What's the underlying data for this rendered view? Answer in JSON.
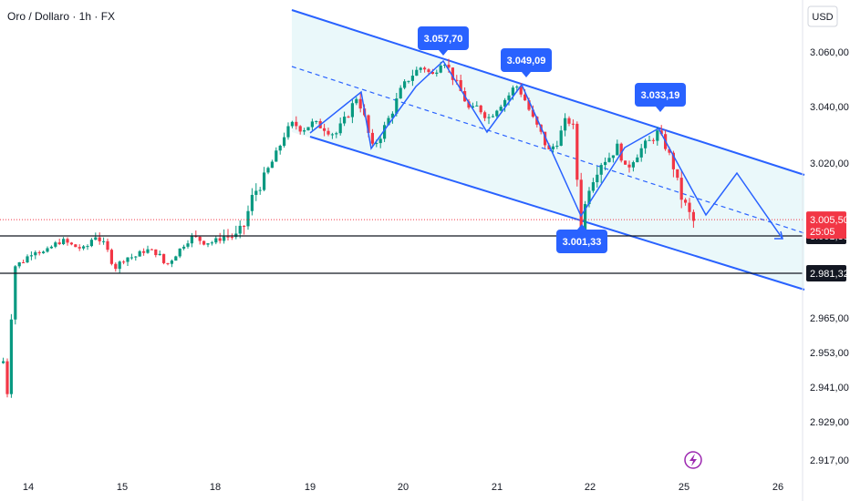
{
  "header": {
    "title": "Oro / Dollaro · 1h · FX"
  },
  "price_axis": {
    "currency": "USD"
  },
  "colors": {
    "up": "#089981",
    "down": "#f23645",
    "pattern": "#2962ff",
    "channel_fill": "#e8f7fa",
    "tag_dark": "#131722",
    "tag_red": "#f23645",
    "lightning": "#9c27b0"
  },
  "chart_data": {
    "type": "candlestick",
    "title": "Oro / Dollaro · 1h · FX",
    "xlabel": "",
    "ylabel": "",
    "ylim": [
      2911,
      3069
    ],
    "x_ticks": [
      "14",
      "15",
      "18",
      "19",
      "20",
      "21",
      "22",
      "25",
      "26"
    ],
    "y_ticks": [
      "3.060,00",
      "3.040,00",
      "3.020,00",
      "2.965,00",
      "2.953,00",
      "2.941,00",
      "2.929,00",
      "2.917,00"
    ],
    "last_price": {
      "value": 3005.5,
      "label": "3.005,50",
      "countdown": "25:05"
    },
    "horizontal_levels": [
      {
        "value": 3001.33,
        "label": "3.001,33"
      },
      {
        "value": 2981.32,
        "label": "2.981,32"
      }
    ],
    "annotations": [
      {
        "label": "3.057,70",
        "x": "20",
        "value": 3057.7
      },
      {
        "label": "3.049,09",
        "x": "21",
        "value": 3049.09
      },
      {
        "label": "3.033,19",
        "x": "24",
        "value": 3033.19
      },
      {
        "label": "3.001,33",
        "x": "22",
        "value": 3001.33
      }
    ],
    "channel": {
      "upper": [
        {
          "x": "18",
          "value": 3073
        },
        {
          "x": "26",
          "value": 3016
        }
      ],
      "lower": [
        {
          "x": "19",
          "value": 3031
        },
        {
          "x": "26",
          "value": 2975
        }
      ]
    },
    "grid": false,
    "legend": "none"
  }
}
